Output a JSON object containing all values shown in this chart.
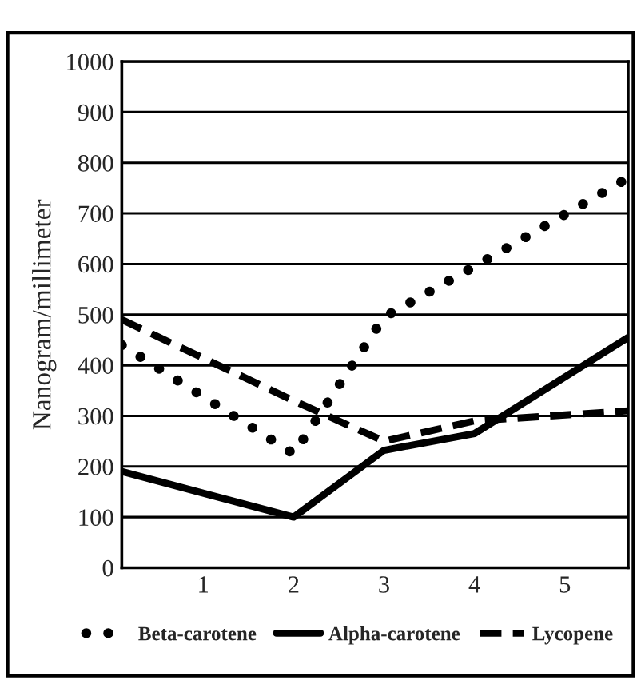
{
  "chart_data": {
    "type": "line",
    "ylabel": "Nanogram/millimeter",
    "x": [
      0.1,
      2,
      3,
      4,
      5.7
    ],
    "series": [
      {
        "name": "Beta-carotene",
        "color": "#000000",
        "line_style": "dotted",
        "values": [
          440,
          225,
          495,
          595,
          770
        ]
      },
      {
        "name": "Alpha-carotene",
        "color": "#000000",
        "line_style": "solid",
        "values": [
          190,
          100,
          232,
          265,
          455
        ]
      },
      {
        "name": "Lycopene",
        "color": "#000000",
        "line_style": "dashed",
        "values": [
          490,
          330,
          250,
          290,
          310
        ]
      }
    ],
    "xlim": [
      0.1,
      5.7
    ],
    "xticks": [
      1,
      2,
      3,
      4,
      5
    ],
    "ylim": [
      0,
      1000
    ],
    "yticks": [
      0,
      100,
      200,
      300,
      400,
      500,
      600,
      700,
      800,
      900,
      1000
    ],
    "grid": "y",
    "legend": "bottom"
  }
}
